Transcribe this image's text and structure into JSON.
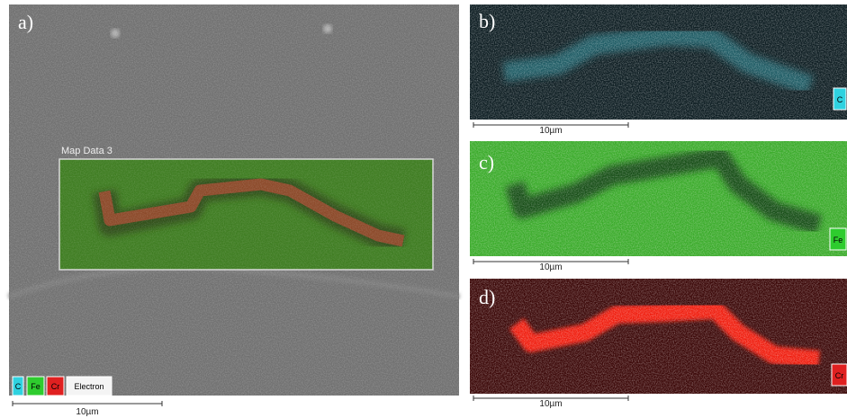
{
  "panels": [
    {
      "label": "a)",
      "overlay_title": "Map Data 3",
      "legend": [
        "C",
        "Fe",
        "Cr",
        "Electron"
      ],
      "scale_bar": "10µm"
    },
    {
      "label": "b)",
      "element": "C",
      "scale_bar": "10µm"
    },
    {
      "label": "c)",
      "element": "Fe",
      "scale_bar": "10µm"
    },
    {
      "label": "d)",
      "element": "Cr",
      "scale_bar": "10µm"
    }
  ]
}
